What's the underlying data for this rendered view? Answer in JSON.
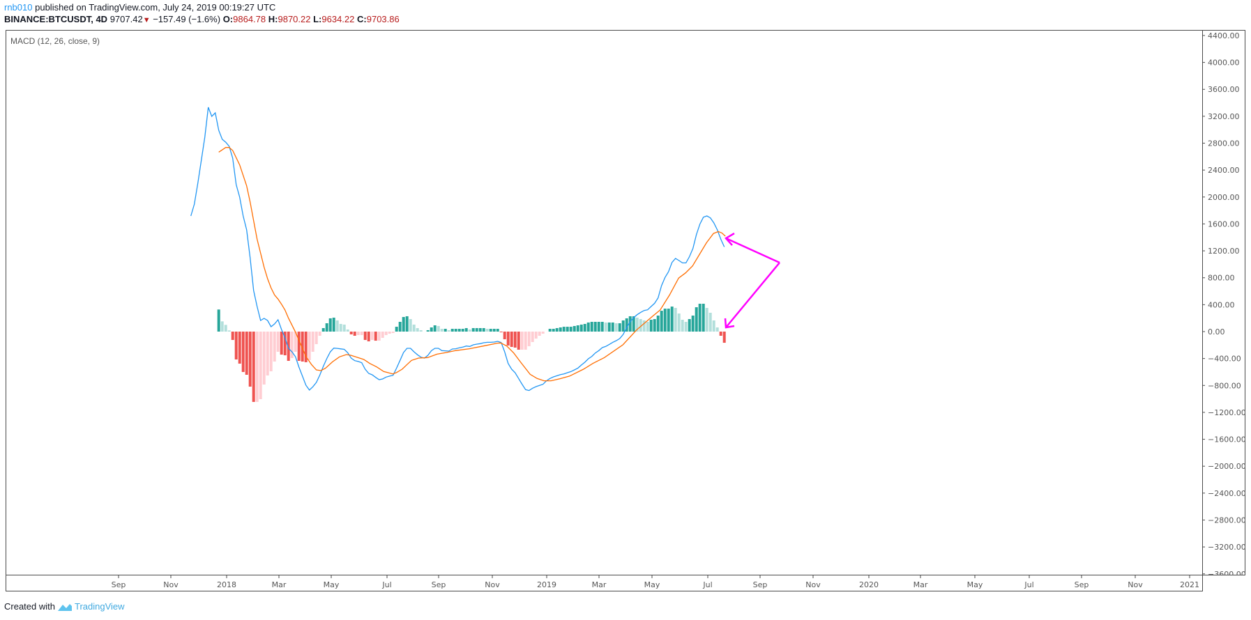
{
  "header": {
    "user": "rnb010",
    "published": "published on TradingView.com, July 24, 2019 00:19:27 UTC",
    "symbol": "BINANCE:BTCUSDT, 4D",
    "last": "9707.42",
    "change": "−157.49 (−1.6%)",
    "open_label": "O:",
    "open": "9864.78",
    "high_label": "H:",
    "high": "9870.22",
    "low_label": "L:",
    "low": "9634.22",
    "close_label": "C:",
    "close": "9703.86",
    "direction_icon": "triangle-down-icon"
  },
  "footer": {
    "created_with": "Created with",
    "brand": "TradingView"
  },
  "colors": {
    "macd": "#2196f3",
    "signal": "#ff6d00",
    "hist_up_strong": "#26a69a",
    "hist_up_weak": "#b2dfdb",
    "hist_down_strong": "#ef5350",
    "hist_down_weak": "#ffcdd2",
    "annotation": "#ff00ff",
    "down": "#b71c1c"
  },
  "chart_data": {
    "type": "line",
    "title": "MACD (12, 26, close, 9)",
    "xlabel": "",
    "ylabel": "",
    "ylim": [
      -3600,
      4400
    ],
    "y_ticks": [
      "4400.00",
      "4000.00",
      "3600.00",
      "3200.00",
      "2800.00",
      "2400.00",
      "2000.00",
      "1600.00",
      "1200.00",
      "800.00",
      "400.00",
      "0.00",
      "−400.00",
      "−800.00",
      "−1200.00",
      "−1600.00",
      "−2000.00",
      "−2400.00",
      "−2800.00",
      "−3200.00",
      "−3600.00"
    ],
    "y_tick_values": [
      4400,
      4000,
      3600,
      3200,
      2800,
      2400,
      2000,
      1600,
      1200,
      800,
      400,
      0,
      -400,
      -800,
      -1200,
      -1600,
      -2000,
      -2400,
      -2800,
      -3200,
      -3600
    ],
    "x_ticks": [
      "Sep",
      "Nov",
      "2018",
      "Mar",
      "May",
      "Jul",
      "Sep",
      "Nov",
      "2019",
      "Mar",
      "May",
      "Jul",
      "Sep",
      "Nov",
      "2020",
      "Mar",
      "May",
      "Jul",
      "Sep",
      "Nov",
      "2021"
    ],
    "bar_interval": "4D",
    "macd_start_bar": -8,
    "macd": [
      1718,
      1894,
      2205,
      2546,
      2888,
      3333,
      3198,
      3250,
      2991,
      2857,
      2815,
      2753,
      2577,
      2184,
      1998,
      1718,
      1511,
      1097,
      611,
      373,
      166,
      197,
      166,
      72,
      114,
      176,
      31,
      -93,
      -248,
      -300,
      -373,
      -528,
      -662,
      -797,
      -869,
      -820,
      -755,
      -645,
      -515,
      -400,
      -300,
      -245,
      -250,
      -257,
      -264,
      -315,
      -395,
      -432,
      -444,
      -462,
      -559,
      -621,
      -642,
      -680,
      -714,
      -704,
      -676,
      -662,
      -649,
      -542,
      -428,
      -311,
      -248,
      -248,
      -300,
      -345,
      -380,
      -393,
      -352,
      -283,
      -248,
      -248,
      -283,
      -286,
      -290,
      -259,
      -255,
      -241,
      -231,
      -214,
      -221,
      -197,
      -186,
      -179,
      -166,
      -159,
      -159,
      -155,
      -145,
      -162,
      -300,
      -473,
      -559,
      -611,
      -697,
      -783,
      -862,
      -876,
      -842,
      -818,
      -800,
      -783,
      -731,
      -697,
      -673,
      -656,
      -640,
      -628,
      -611,
      -594,
      -569,
      -542,
      -497,
      -455,
      -404,
      -369,
      -318,
      -283,
      -238,
      -221,
      -190,
      -159,
      -135,
      -104,
      -41,
      62,
      148,
      207,
      252,
      286,
      314,
      324,
      373,
      420,
      500,
      683,
      804,
      890,
      1028,
      1087,
      1056,
      1021,
      1021,
      1114,
      1235,
      1442,
      1597,
      1700,
      1718,
      1690,
      1615,
      1511,
      1373,
      1259
    ],
    "signal": [
      [
        0,
        2667
      ],
      [
        2,
        2736
      ],
      [
        3,
        2736
      ],
      [
        4,
        2691
      ],
      [
        6,
        2477
      ],
      [
        8,
        2166
      ],
      [
        9,
        1925
      ],
      [
        10,
        1649
      ],
      [
        11,
        1373
      ],
      [
        12,
        1166
      ],
      [
        13,
        959
      ],
      [
        14,
        787
      ],
      [
        15,
        649
      ],
      [
        16,
        545
      ],
      [
        17,
        483
      ],
      [
        18,
        407
      ],
      [
        19,
        321
      ],
      [
        20,
        200
      ],
      [
        21,
        96
      ],
      [
        22,
        -7
      ],
      [
        23,
        -128
      ],
      [
        24,
        -248
      ],
      [
        25,
        -370
      ],
      [
        26.6,
        -490
      ],
      [
        28,
        -569
      ],
      [
        29.3,
        -580
      ],
      [
        30.6,
        -545
      ],
      [
        32.6,
        -450
      ],
      [
        34.6,
        -376
      ],
      [
        36.6,
        -342
      ],
      [
        37.9,
        -352
      ],
      [
        39.9,
        -386
      ],
      [
        41.6,
        -414
      ],
      [
        43.3,
        -473
      ],
      [
        45.3,
        -525
      ],
      [
        47.3,
        -593
      ],
      [
        49.9,
        -628
      ],
      [
        50.9,
        -611
      ],
      [
        52.6,
        -559
      ],
      [
        54,
        -490
      ],
      [
        55.3,
        -428
      ],
      [
        57.3,
        -393
      ],
      [
        59.9,
        -386
      ],
      [
        62.6,
        -335
      ],
      [
        65.3,
        -311
      ],
      [
        67.9,
        -283
      ],
      [
        71.9,
        -255
      ],
      [
        75.9,
        -214
      ],
      [
        79.9,
        -172
      ],
      [
        80.9,
        -169
      ],
      [
        82.6,
        -214
      ],
      [
        84.6,
        -318
      ],
      [
        86.6,
        -455
      ],
      [
        89.3,
        -635
      ],
      [
        91.3,
        -697
      ],
      [
        93.3,
        -731
      ],
      [
        95.3,
        -731
      ],
      [
        97.9,
        -700
      ],
      [
        100.6,
        -662
      ],
      [
        104.6,
        -559
      ],
      [
        107.3,
        -473
      ],
      [
        110.6,
        -386
      ],
      [
        115.9,
        -197
      ],
      [
        119.9,
        28
      ],
      [
        124.6,
        235
      ],
      [
        126.6,
        321
      ],
      [
        129.3,
        545
      ],
      [
        131.9,
        795
      ],
      [
        133.9,
        873
      ],
      [
        135.9,
        976
      ],
      [
        137.9,
        1149
      ],
      [
        139.9,
        1321
      ],
      [
        141.9,
        1459
      ],
      [
        143.3,
        1487
      ],
      [
        144.3,
        1466
      ],
      [
        145.3,
        1418
      ]
    ],
    "histogram": [
      328,
      152,
      100,
      17,
      -124,
      -414,
      -476,
      -600,
      -642,
      -818,
      -1045,
      -1045,
      -1004,
      -787,
      -652,
      -590,
      -445,
      -300,
      -342,
      -352,
      -435,
      -393,
      -300,
      -435,
      -445,
      -455,
      -424,
      -300,
      -186,
      -62,
      52,
      124,
      197,
      207,
      166,
      114,
      104,
      31,
      -41,
      -62,
      -52,
      -52,
      -124,
      -145,
      -124,
      -135,
      -135,
      -93,
      -52,
      -31,
      -21,
      72,
      145,
      217,
      228,
      186,
      104,
      52,
      21,
      0,
      21,
      62,
      93,
      83,
      41,
      41,
      21,
      41,
      41,
      41,
      41,
      52,
      31,
      52,
      52,
      52,
      52,
      41,
      41,
      41,
      41,
      -10,
      -114,
      -207,
      -228,
      -238,
      -269,
      -269,
      -269,
      -217,
      -155,
      -104,
      -62,
      -31,
      0,
      41,
      41,
      52,
      62,
      72,
      72,
      72,
      83,
      93,
      104,
      114,
      135,
      145,
      145,
      145,
      145,
      135,
      135,
      135,
      124,
      124,
      166,
      197,
      228,
      228,
      207,
      186,
      166,
      145,
      176,
      186,
      238,
      310,
      341,
      341,
      372,
      352,
      269,
      176,
      145,
      186,
      238,
      362,
      414,
      414,
      352,
      280,
      166,
      62,
      -62,
      -166
    ],
    "annotations": [
      {
        "type": "arrow",
        "points_to": "MACD/signal cross-over"
      },
      {
        "type": "arrow",
        "points_to": "first negative histogram bar"
      }
    ],
    "grid": false,
    "legend": "none"
  }
}
